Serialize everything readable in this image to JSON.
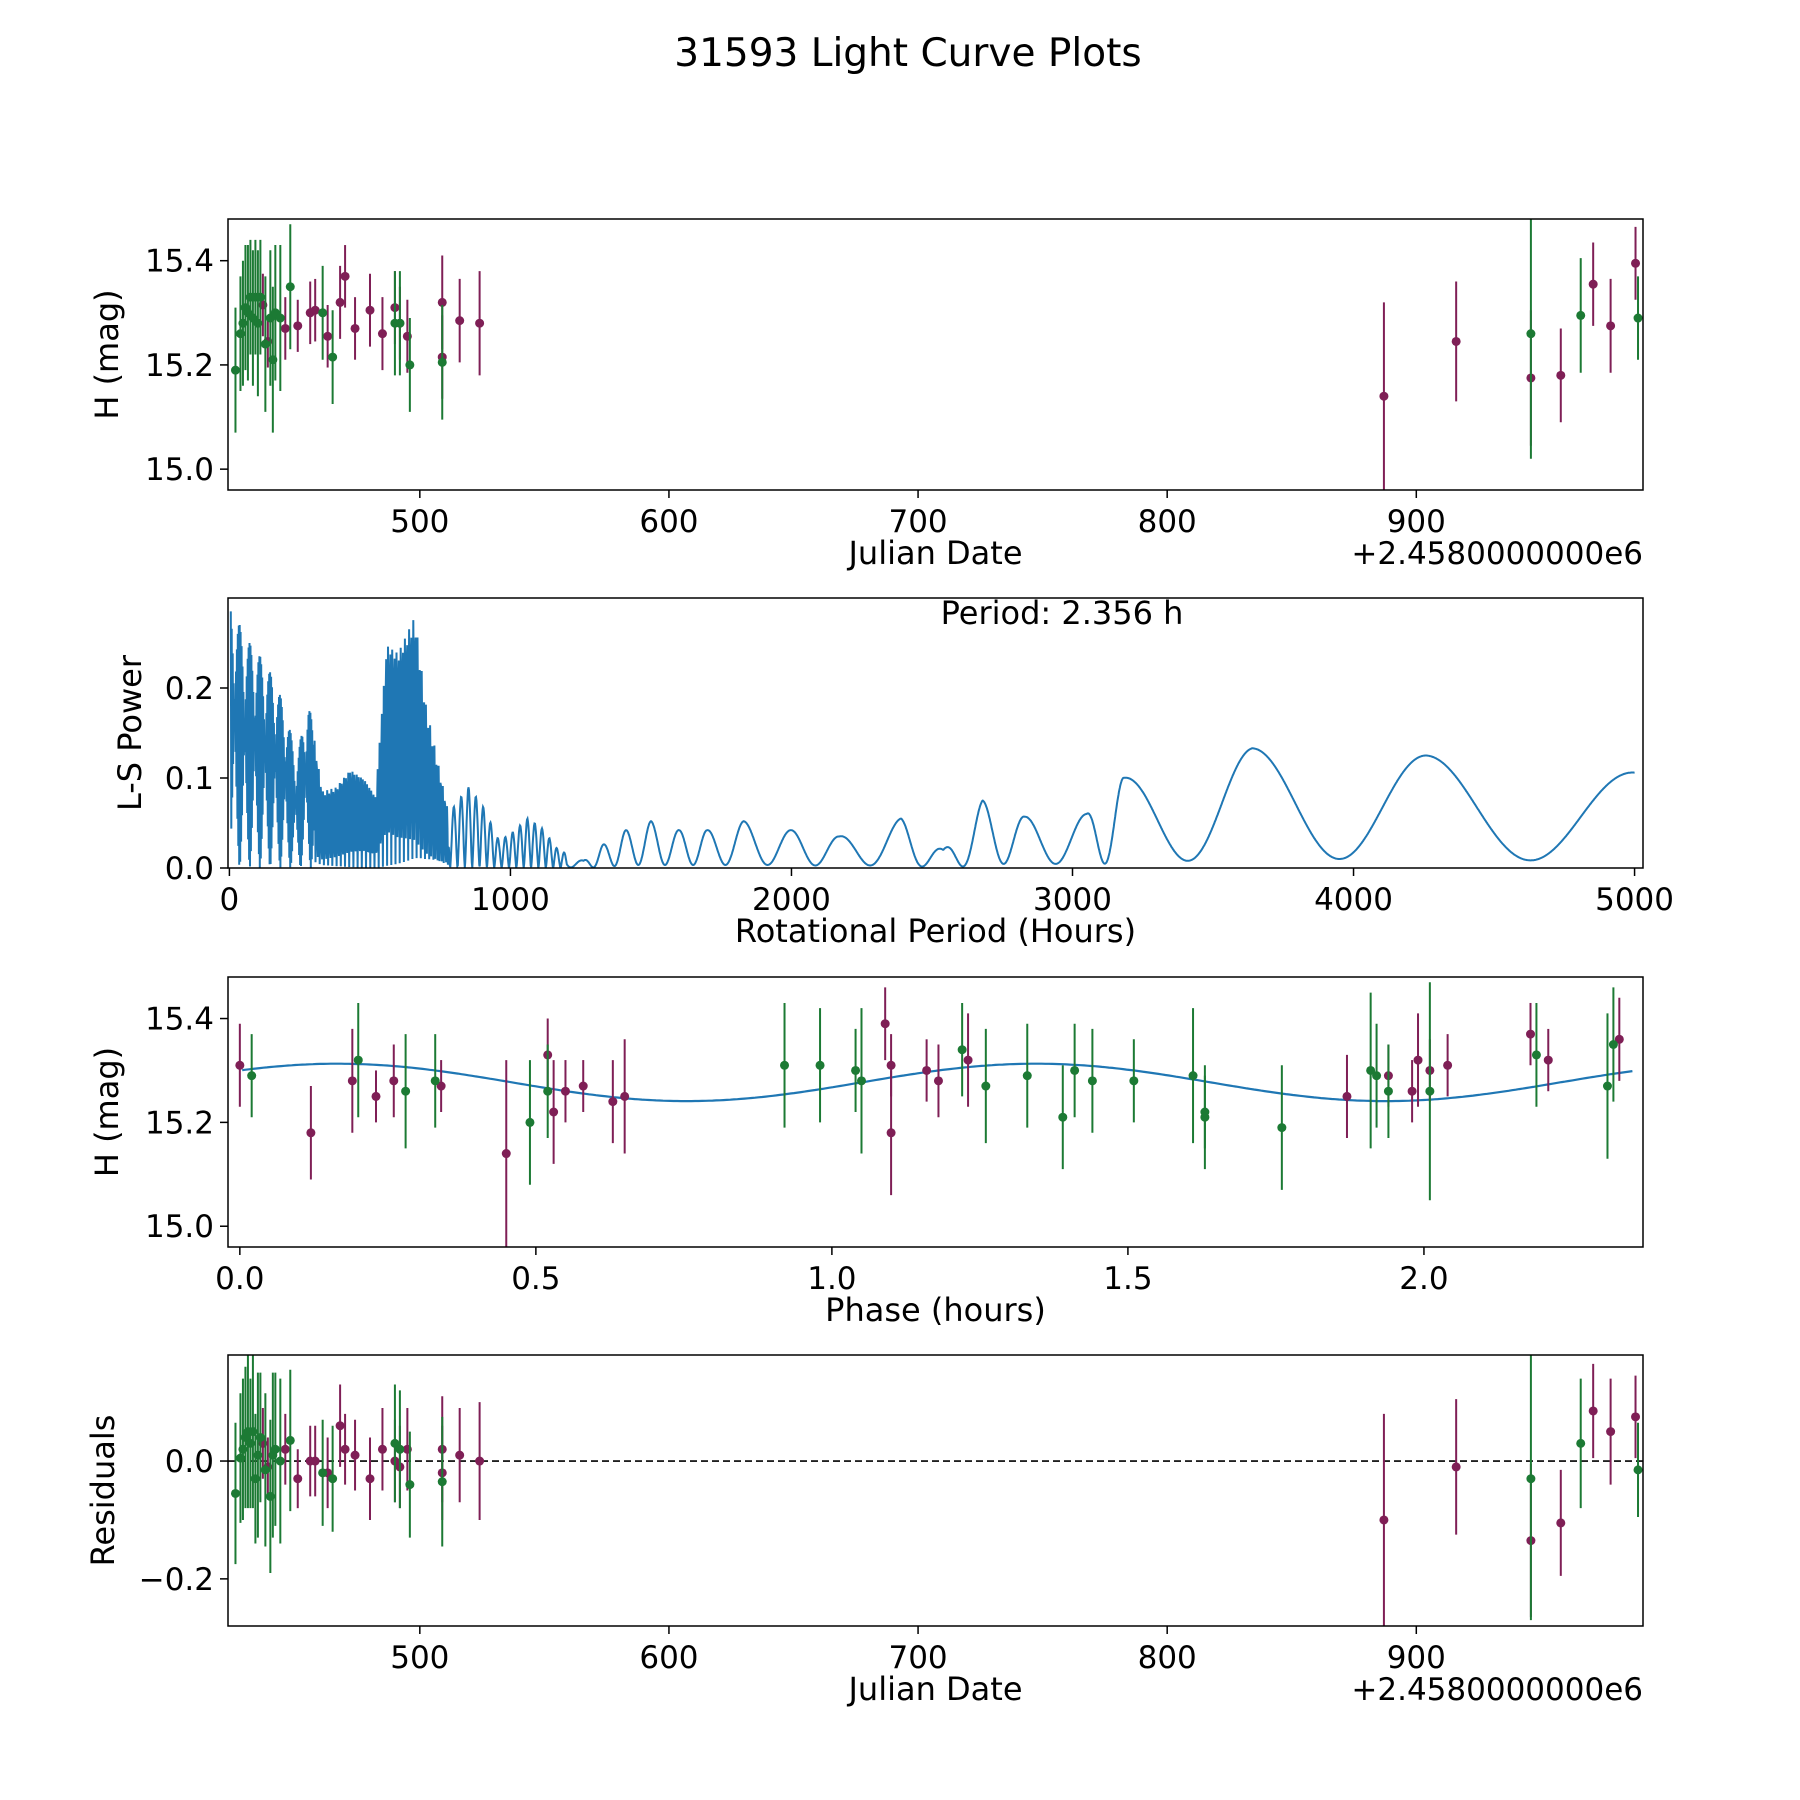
{
  "colors": {
    "red": "#7f1f56",
    "green": "#1c7a34",
    "line": "#1f77b4"
  },
  "title": "31593 Light Curve Plots",
  "chart_data": [
    {
      "id": "p1",
      "type": "scatter",
      "xlabel": "Julian Date",
      "ylabel": "H (mag)",
      "xlim": [
        423,
        991
      ],
      "ylim": [
        14.96,
        15.48
      ],
      "xticks": [
        500,
        600,
        700,
        800,
        900
      ],
      "yticks": [
        15.0,
        15.2,
        15.4
      ],
      "xtick_labels": [
        "500",
        "600",
        "700",
        "800",
        "900"
      ],
      "ytick_labels": [
        "15.0",
        "15.2",
        "15.4"
      ],
      "offset_label": "+2.4580000000e6",
      "series": [
        {
          "name": "red",
          "color": "red",
          "points": [
            [
              437,
              15.315,
              0.06
            ],
            [
              439,
              15.245,
              0.05
            ],
            [
              446,
              15.27,
              0.06
            ],
            [
              451,
              15.275,
              0.05
            ],
            [
              456,
              15.3,
              0.06
            ],
            [
              458,
              15.305,
              0.06
            ],
            [
              463,
              15.255,
              0.06
            ],
            [
              468,
              15.32,
              0.07
            ],
            [
              470,
              15.37,
              0.06
            ],
            [
              474,
              15.27,
              0.06
            ],
            [
              480,
              15.305,
              0.07
            ],
            [
              485,
              15.26,
              0.07
            ],
            [
              490,
              15.31,
              0.07
            ],
            [
              492,
              15.28,
              0.07
            ],
            [
              495,
              15.255,
              0.07
            ],
            [
              509,
              15.32,
              0.09
            ],
            [
              509,
              15.215,
              0.08
            ],
            [
              516,
              15.285,
              0.08
            ],
            [
              524,
              15.28,
              0.1
            ],
            [
              887,
              15.14,
              0.18
            ],
            [
              916,
              15.245,
              0.115
            ],
            [
              946,
              15.175,
              0.13
            ],
            [
              958,
              15.18,
              0.09
            ],
            [
              971,
              15.355,
              0.08
            ],
            [
              978,
              15.275,
              0.09
            ],
            [
              988,
              15.395,
              0.07
            ]
          ]
        },
        {
          "name": "green",
          "color": "green",
          "points": [
            [
              426,
              15.19,
              0.12
            ],
            [
              428,
              15.26,
              0.11
            ],
            [
              429,
              15.28,
              0.12
            ],
            [
              430,
              15.31,
              0.12
            ],
            [
              431,
              15.3,
              0.13
            ],
            [
              432,
              15.33,
              0.11
            ],
            [
              433,
              15.29,
              0.13
            ],
            [
              434,
              15.33,
              0.11
            ],
            [
              435,
              15.28,
              0.14
            ],
            [
              436,
              15.33,
              0.11
            ],
            [
              438,
              15.24,
              0.13
            ],
            [
              440,
              15.29,
              0.13
            ],
            [
              441,
              15.21,
              0.14
            ],
            [
              442,
              15.3,
              0.13
            ],
            [
              444,
              15.29,
              0.14
            ],
            [
              448,
              15.35,
              0.12
            ],
            [
              461,
              15.3,
              0.09
            ],
            [
              465,
              15.215,
              0.09
            ],
            [
              490,
              15.28,
              0.1
            ],
            [
              492,
              15.28,
              0.1
            ],
            [
              496,
              15.2,
              0.09
            ],
            [
              509,
              15.205,
              0.11
            ],
            [
              946,
              15.26,
              0.24
            ],
            [
              966,
              15.295,
              0.11
            ],
            [
              989,
              15.29,
              0.08
            ]
          ]
        }
      ]
    },
    {
      "id": "p2",
      "type": "line",
      "xlabel": "Rotational Period (Hours)",
      "ylabel": "L-S Power",
      "xlim": [
        -5,
        5030
      ],
      "ylim": [
        0,
        0.3
      ],
      "xticks": [
        0,
        1000,
        2000,
        3000,
        4000,
        5000
      ],
      "yticks": [
        0.0,
        0.1,
        0.2
      ],
      "xtick_labels": [
        "0",
        "1000",
        "2000",
        "3000",
        "4000",
        "5000"
      ],
      "ytick_labels": [
        "0.0",
        "0.1",
        "0.2"
      ],
      "annotation": "Period: 2.356 h",
      "peaks": [
        [
          6,
          0.295
        ],
        [
          55,
          0.255
        ],
        [
          90,
          0.245
        ],
        [
          120,
          0.23
        ],
        [
          160,
          0.21
        ],
        [
          200,
          0.175
        ],
        [
          240,
          0.12
        ],
        [
          280,
          0.19
        ],
        [
          330,
          0.085
        ],
        [
          380,
          0.09
        ],
        [
          430,
          0.11
        ],
        [
          480,
          0.1
        ],
        [
          520,
          0.08
        ],
        [
          560,
          0.25
        ],
        [
          600,
          0.24
        ],
        [
          660,
          0.28
        ],
        [
          700,
          0.18
        ],
        [
          740,
          0.12
        ],
        [
          780,
          0.06
        ],
        [
          850,
          0.09
        ],
        [
          900,
          0.07
        ],
        [
          960,
          0.03
        ],
        [
          1010,
          0.04
        ],
        [
          1060,
          0.055
        ],
        [
          1110,
          0.045
        ],
        [
          1170,
          0.02
        ],
        [
          1260,
          0.008
        ],
        [
          1330,
          0.026
        ],
        [
          1410,
          0.042
        ],
        [
          1500,
          0.052
        ],
        [
          1600,
          0.042
        ],
        [
          1700,
          0.042
        ],
        [
          1830,
          0.052
        ],
        [
          2000,
          0.042
        ],
        [
          2170,
          0.035
        ],
        [
          2390,
          0.055
        ],
        [
          2540,
          0.02
        ],
        [
          2680,
          0.075
        ],
        [
          2830,
          0.057
        ],
        [
          3050,
          0.06
        ],
        [
          3180,
          0.1
        ],
        [
          3640,
          0.133
        ],
        [
          4260,
          0.125
        ],
        [
          5000,
          0.106
        ]
      ]
    },
    {
      "id": "p3",
      "type": "scatter",
      "xlabel": "Phase (hours)",
      "ylabel": "H (mag)",
      "xlim": [
        -0.02,
        2.37
      ],
      "ylim": [
        14.96,
        15.48
      ],
      "xticks": [
        0.0,
        0.5,
        1.0,
        1.5,
        2.0
      ],
      "yticks": [
        15.0,
        15.2,
        15.4
      ],
      "xtick_labels": [
        "0.0",
        "0.5",
        "1.0",
        "1.5",
        "2.0"
      ],
      "ytick_labels": [
        "15.0",
        "15.2",
        "15.4"
      ],
      "model": {
        "mean": 15.277,
        "amplitude": 0.036,
        "period": 1.18,
        "phase_offset": 0.165
      },
      "series": [
        {
          "name": "red",
          "color": "red",
          "points": [
            [
              0.0,
              15.31,
              0.08
            ],
            [
              0.12,
              15.18,
              0.09
            ],
            [
              0.19,
              15.28,
              0.1
            ],
            [
              0.23,
              15.25,
              0.05
            ],
            [
              0.26,
              15.28,
              0.07
            ],
            [
              0.34,
              15.27,
              0.05
            ],
            [
              0.45,
              15.14,
              0.18
            ],
            [
              0.52,
              15.33,
              0.07
            ],
            [
              0.53,
              15.22,
              0.1
            ],
            [
              0.55,
              15.26,
              0.06
            ],
            [
              0.58,
              15.27,
              0.05
            ],
            [
              0.63,
              15.24,
              0.08
            ],
            [
              0.65,
              15.25,
              0.11
            ],
            [
              1.09,
              15.39,
              0.07
            ],
            [
              1.1,
              15.31,
              0.06
            ],
            [
              1.1,
              15.18,
              0.12
            ],
            [
              1.16,
              15.3,
              0.06
            ],
            [
              1.18,
              15.28,
              0.07
            ],
            [
              1.23,
              15.32,
              0.09
            ],
            [
              1.87,
              15.25,
              0.08
            ],
            [
              1.94,
              15.29,
              0.06
            ],
            [
              1.98,
              15.26,
              0.06
            ],
            [
              1.99,
              15.32,
              0.09
            ],
            [
              2.01,
              15.3,
              0.06
            ],
            [
              2.04,
              15.31,
              0.06
            ],
            [
              2.18,
              15.37,
              0.06
            ],
            [
              2.21,
              15.32,
              0.06
            ],
            [
              2.33,
              15.36,
              0.08
            ]
          ]
        },
        {
          "name": "green",
          "color": "green",
          "points": [
            [
              0.02,
              15.29,
              0.08
            ],
            [
              0.2,
              15.32,
              0.11
            ],
            [
              0.28,
              15.26,
              0.11
            ],
            [
              0.33,
              15.28,
              0.09
            ],
            [
              0.49,
              15.2,
              0.12
            ],
            [
              0.52,
              15.26,
              0.09
            ],
            [
              0.92,
              15.31,
              0.12
            ],
            [
              0.98,
              15.31,
              0.11
            ],
            [
              1.04,
              15.3,
              0.08
            ],
            [
              1.05,
              15.28,
              0.14
            ],
            [
              1.22,
              15.34,
              0.09
            ],
            [
              1.26,
              15.27,
              0.11
            ],
            [
              1.33,
              15.29,
              0.1
            ],
            [
              1.39,
              15.21,
              0.1
            ],
            [
              1.41,
              15.3,
              0.09
            ],
            [
              1.44,
              15.28,
              0.1
            ],
            [
              1.51,
              15.28,
              0.08
            ],
            [
              1.61,
              15.29,
              0.13
            ],
            [
              1.63,
              15.21,
              0.1
            ],
            [
              1.63,
              15.22,
              0.07
            ],
            [
              1.76,
              15.19,
              0.12
            ],
            [
              1.91,
              15.3,
              0.15
            ],
            [
              1.92,
              15.29,
              0.1
            ],
            [
              1.94,
              15.26,
              0.09
            ],
            [
              2.01,
              15.26,
              0.21
            ],
            [
              2.19,
              15.33,
              0.1
            ],
            [
              2.31,
              15.27,
              0.14
            ],
            [
              2.32,
              15.35,
              0.11
            ]
          ]
        }
      ]
    },
    {
      "id": "p4",
      "type": "scatter",
      "xlabel": "Julian Date",
      "ylabel": "Residuals",
      "xlim": [
        423,
        991
      ],
      "ylim": [
        -0.28,
        0.18
      ],
      "xticks": [
        500,
        600,
        700,
        800,
        900
      ],
      "yticks": [
        -0.2,
        0.0
      ],
      "xtick_labels": [
        "500",
        "600",
        "700",
        "800",
        "900"
      ],
      "ytick_labels": [
        "−0.2",
        "0.0"
      ],
      "offset_label": "+2.4580000000e6",
      "zero_line": 0.0,
      "series": [
        {
          "name": "red",
          "color": "red",
          "points": [
            [
              437,
              0.03,
              0.06
            ],
            [
              439,
              -0.01,
              0.05
            ],
            [
              446,
              0.02,
              0.06
            ],
            [
              451,
              -0.03,
              0.05
            ],
            [
              456,
              0.0,
              0.06
            ],
            [
              458,
              0.0,
              0.06
            ],
            [
              463,
              -0.02,
              0.06
            ],
            [
              468,
              0.06,
              0.07
            ],
            [
              470,
              0.02,
              0.06
            ],
            [
              474,
              0.01,
              0.06
            ],
            [
              480,
              -0.03,
              0.07
            ],
            [
              485,
              0.02,
              0.07
            ],
            [
              490,
              0.0,
              0.07
            ],
            [
              492,
              -0.01,
              0.07
            ],
            [
              495,
              0.02,
              0.07
            ],
            [
              509,
              0.02,
              0.09
            ],
            [
              509,
              -0.02,
              0.08
            ],
            [
              516,
              0.01,
              0.08
            ],
            [
              524,
              0.0,
              0.1
            ],
            [
              887,
              -0.1,
              0.18
            ],
            [
              916,
              -0.01,
              0.115
            ],
            [
              946,
              -0.135,
              0.13
            ],
            [
              958,
              -0.105,
              0.09
            ],
            [
              971,
              0.085,
              0.08
            ],
            [
              978,
              0.05,
              0.09
            ],
            [
              988,
              0.075,
              0.07
            ]
          ]
        },
        {
          "name": "green",
          "color": "green",
          "points": [
            [
              426,
              -0.055,
              0.12
            ],
            [
              428,
              0.005,
              0.11
            ],
            [
              429,
              0.02,
              0.12
            ],
            [
              430,
              0.04,
              0.12
            ],
            [
              431,
              0.05,
              0.13
            ],
            [
              432,
              0.03,
              0.11
            ],
            [
              433,
              0.05,
              0.13
            ],
            [
              434,
              -0.03,
              0.11
            ],
            [
              435,
              0.01,
              0.14
            ],
            [
              436,
              0.04,
              0.11
            ],
            [
              438,
              -0.015,
              0.13
            ],
            [
              440,
              -0.06,
              0.13
            ],
            [
              441,
              0.01,
              0.14
            ],
            [
              442,
              0.02,
              0.13
            ],
            [
              444,
              0.0,
              0.14
            ],
            [
              448,
              0.035,
              0.12
            ],
            [
              461,
              -0.02,
              0.09
            ],
            [
              465,
              -0.03,
              0.09
            ],
            [
              490,
              0.03,
              0.1
            ],
            [
              492,
              0.02,
              0.1
            ],
            [
              496,
              -0.04,
              0.09
            ],
            [
              509,
              -0.035,
              0.11
            ],
            [
              946,
              -0.03,
              0.24
            ],
            [
              966,
              0.03,
              0.11
            ],
            [
              989,
              -0.015,
              0.08
            ]
          ]
        }
      ]
    }
  ]
}
